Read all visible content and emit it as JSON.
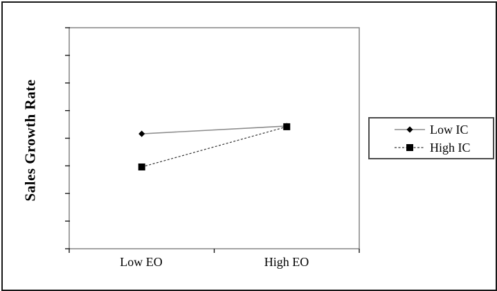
{
  "figure": {
    "background": "#ffffff",
    "frame_color": "#161616"
  },
  "chart_data": {
    "type": "line",
    "title": "",
    "xlabel": "",
    "ylabel": "Sales Growth Rate",
    "categories": [
      "Low EO",
      "High EO"
    ],
    "series": [
      {
        "name": "Low IC",
        "marker": "diamond",
        "marker_color": "#000000",
        "line_style": "solid",
        "line_color": "#8c8c8c",
        "values": [
          0.52,
          0.555
        ]
      },
      {
        "name": "High IC",
        "marker": "square",
        "marker_color": "#000000",
        "line_style": "dashed",
        "line_color": "#333333",
        "values": [
          0.37,
          0.552
        ]
      }
    ],
    "y_axis": {
      "min": 0,
      "max": 1,
      "tick_count": 9,
      "tick_labels_visible": false,
      "note": "axis ticks are unlabeled; series values are relative estimates (fraction of axis height)"
    },
    "x_axis": {
      "tick_count": 3,
      "tick_labels_visible": true
    },
    "axis_color": "#848484",
    "tick_color": "#1a1a1a",
    "grid": false,
    "legend_position": "right-outside"
  }
}
